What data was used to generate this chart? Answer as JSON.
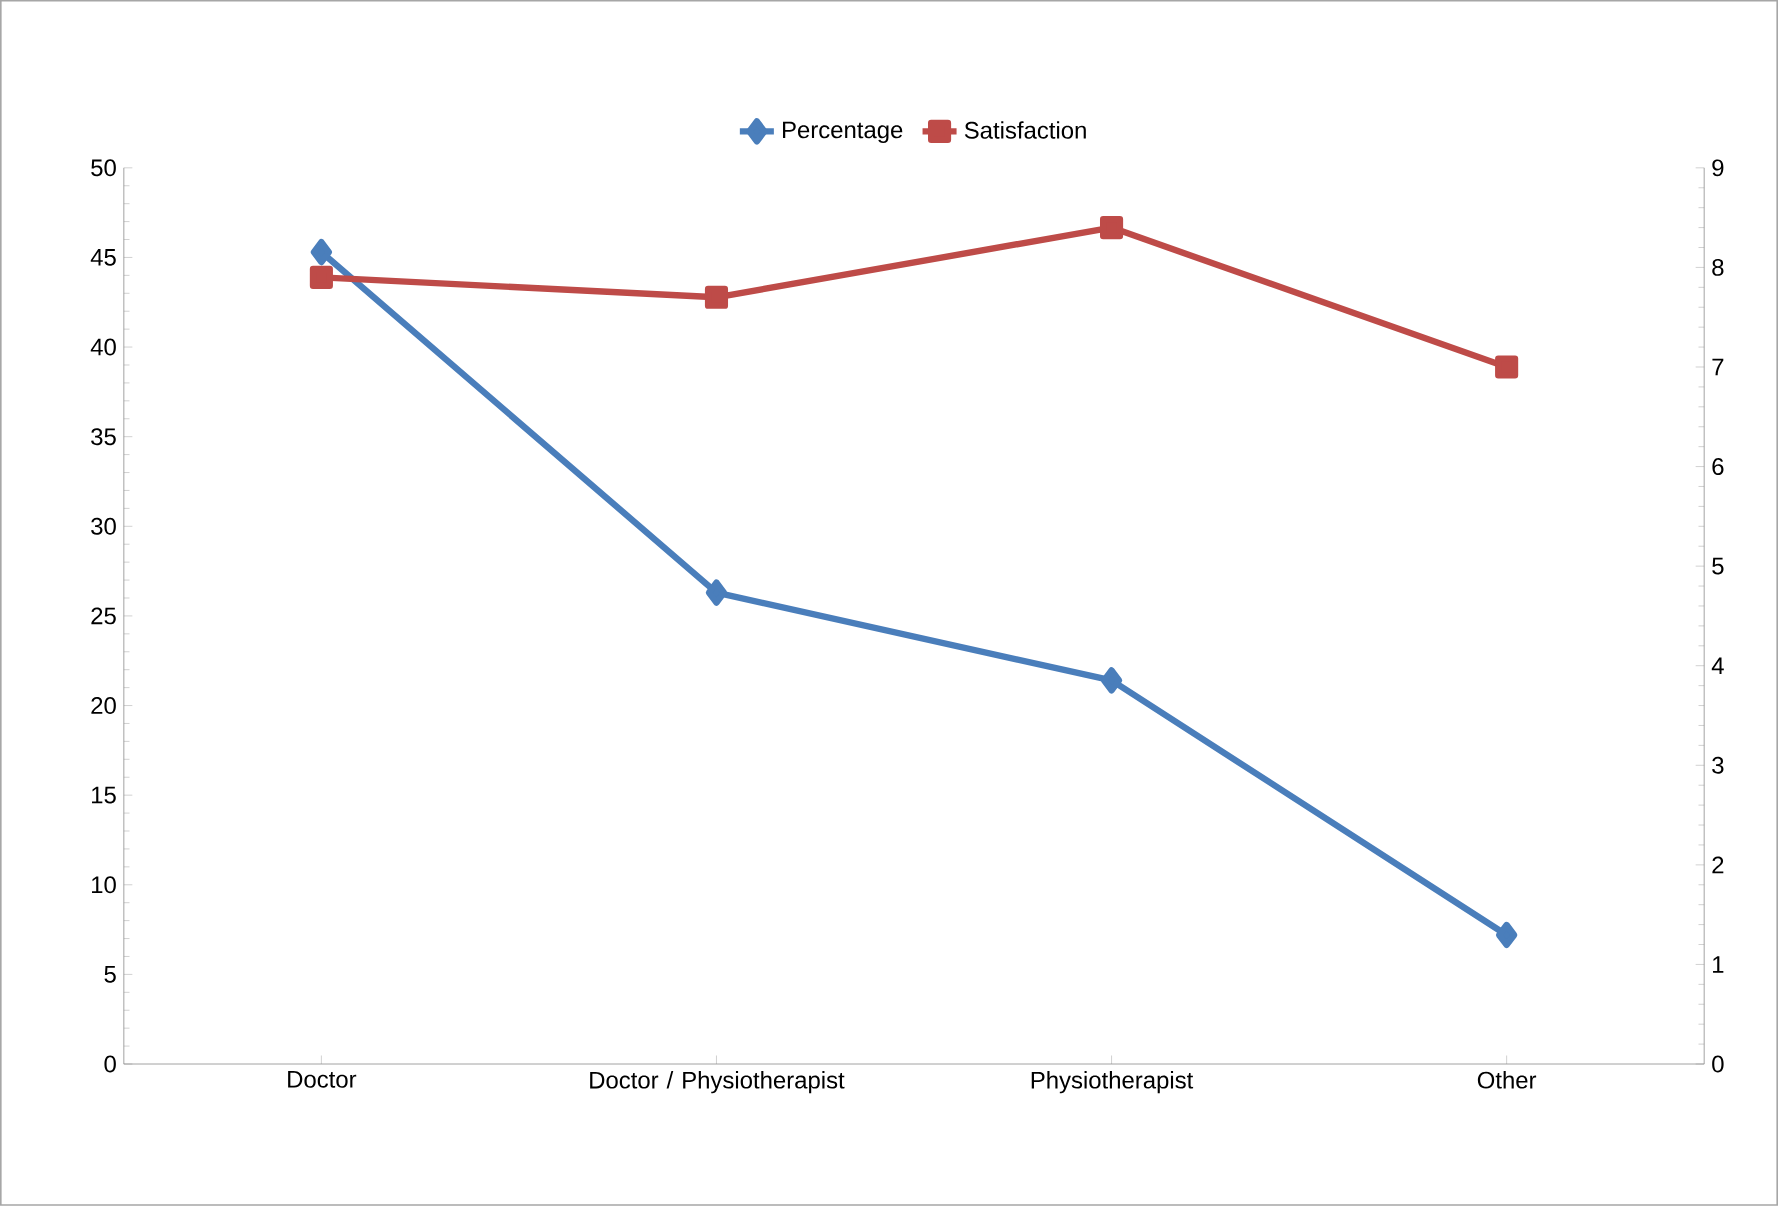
{
  "chart_data": {
    "type": "line",
    "categories": [
      "Doctor",
      "Doctor / Physiotherapist",
      "Physiotherapist",
      "Other"
    ],
    "series": [
      {
        "name": "Percentage",
        "color": "#4a7ebb",
        "values": [
          45.3,
          26.3,
          21.4,
          7.2
        ],
        "marker": "diamond"
      },
      {
        "name": "Satisfaction",
        "color": "#be4b48",
        "values": [
          7.9,
          7.7,
          8.4,
          7.0
        ],
        "marker": "square",
        "axis": "y2"
      }
    ],
    "ylim": [
      0,
      50
    ],
    "yticks": [
      0,
      5,
      10,
      15,
      20,
      25,
      30,
      35,
      40,
      45,
      50
    ],
    "y2lim": [
      0,
      9
    ],
    "y2ticks": [
      0,
      1,
      2,
      3,
      4,
      5,
      6,
      7,
      8,
      9
    ],
    "legend": "top",
    "grid": false,
    "line_style": "solid"
  }
}
